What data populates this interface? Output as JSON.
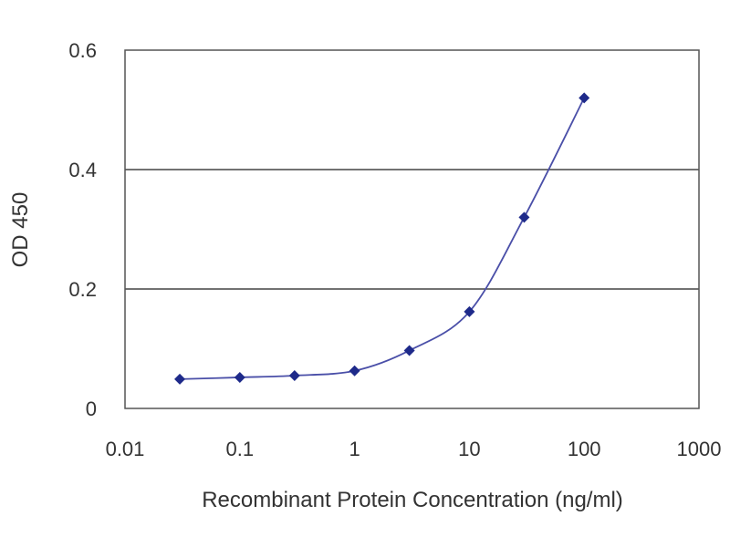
{
  "chart_data": {
    "type": "scatter",
    "title": "",
    "xlabel": "Recombinant Protein Concentration (ng/ml)",
    "ylabel": "OD 450",
    "x_scale": "log",
    "xlim": [
      0.01,
      1000
    ],
    "ylim": [
      0,
      0.6
    ],
    "x_ticks": [
      0.01,
      0.1,
      1,
      10,
      100,
      1000
    ],
    "x_tick_labels": [
      "0.01",
      "0.1",
      "1",
      "10",
      "100",
      "1000"
    ],
    "y_ticks": [
      0,
      0.2,
      0.4,
      0.6
    ],
    "y_tick_labels": [
      "0",
      "0.2",
      "0.4",
      "0.6"
    ],
    "grid": "horizontal",
    "legend": "none",
    "series": [
      {
        "x": [
          0.03,
          0.1,
          0.3,
          1,
          3,
          10,
          30,
          100
        ],
        "y": [
          0.049,
          0.052,
          0.055,
          0.063,
          0.097,
          0.162,
          0.32,
          0.52
        ],
        "color": "#1e2a8a",
        "line_color": "#4a4fa8",
        "marker": "diamond"
      }
    ]
  }
}
